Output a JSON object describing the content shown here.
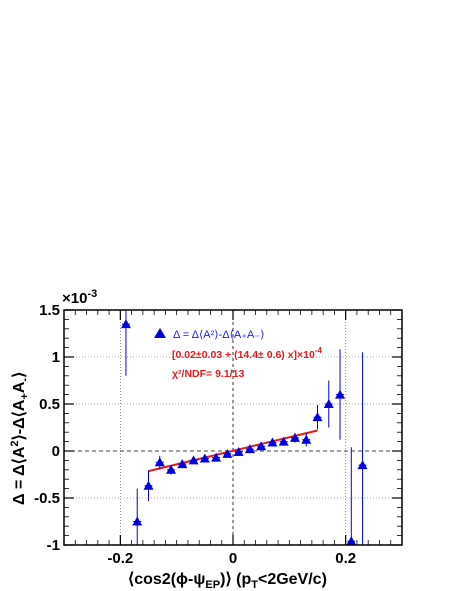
{
  "chart_data": {
    "type": "scatter",
    "xlabel_parts": {
      "pre": "⟨cos2(ϕ-ψ",
      "sub": "EP",
      "mid": ")⟩ (p",
      "sub2": "T",
      "post": "<2GeV/c)"
    },
    "ylabel_parts": {
      "pre": "Δ = Δ⟨A",
      "sup": "2",
      "mid": "⟩-Δ⟨A",
      "sub1": "+",
      "mid2": "A",
      "sub2": "-",
      "post": "⟩"
    },
    "y_exponent": "×10",
    "y_exponent_power": "-3",
    "xlim": [
      -0.3,
      0.3
    ],
    "ylim": [
      -1.0,
      1.5
    ],
    "x_ticks": [
      -0.2,
      0,
      0.2
    ],
    "x_tick_labels": [
      "-0.2",
      "0",
      "0.2"
    ],
    "y_ticks": [
      -1,
      -0.5,
      0,
      0.5,
      1,
      1.5
    ],
    "y_tick_labels": [
      "-1",
      "-0.5",
      "0",
      "0.5",
      "1",
      "1.5"
    ],
    "grid": true,
    "colors": {
      "markers": "#0000e0",
      "fit": "#e41a1c",
      "grid": "#555555"
    },
    "series": [
      {
        "name": "Δ = Δ⟨A²⟩-Δ⟨A₊A₋⟩",
        "marker": "triangle",
        "points": [
          {
            "x": -0.19,
            "y": 1.35,
            "err": 0.55
          },
          {
            "x": -0.17,
            "y": -0.75,
            "err": 0.35
          },
          {
            "x": -0.15,
            "y": -0.37,
            "err": 0.16
          },
          {
            "x": -0.13,
            "y": -0.12,
            "err": 0.07
          },
          {
            "x": -0.11,
            "y": -0.2,
            "err": 0.05
          },
          {
            "x": -0.09,
            "y": -0.14,
            "err": 0.04
          },
          {
            "x": -0.07,
            "y": -0.1,
            "err": 0.03
          },
          {
            "x": -0.05,
            "y": -0.08,
            "err": 0.03
          },
          {
            "x": -0.03,
            "y": -0.07,
            "err": 0.025
          },
          {
            "x": -0.01,
            "y": -0.03,
            "err": 0.025
          },
          {
            "x": 0.01,
            "y": -0.01,
            "err": 0.025
          },
          {
            "x": 0.03,
            "y": 0.02,
            "err": 0.025
          },
          {
            "x": 0.05,
            "y": 0.05,
            "err": 0.03
          },
          {
            "x": 0.07,
            "y": 0.09,
            "err": 0.03
          },
          {
            "x": 0.09,
            "y": 0.1,
            "err": 0.04
          },
          {
            "x": 0.11,
            "y": 0.14,
            "err": 0.05
          },
          {
            "x": 0.13,
            "y": 0.12,
            "err": 0.07
          },
          {
            "x": 0.15,
            "y": 0.36,
            "err": 0.13
          },
          {
            "x": 0.17,
            "y": 0.5,
            "err": 0.25
          },
          {
            "x": 0.19,
            "y": 0.6,
            "err": 0.48
          },
          {
            "x": 0.21,
            "y": -0.96,
            "err": 1.0
          },
          {
            "x": 0.23,
            "y": -0.15,
            "err": 1.2
          }
        ]
      }
    ],
    "fit": {
      "x": [
        -0.15,
        0.15
      ],
      "intercept": 0.002,
      "slope": 1.44
    },
    "legend": {
      "position": "top-left",
      "entry": "Δ = Δ⟨A²⟩-Δ⟨A₊A₋⟩",
      "fit_text": "[0.02±0.03 + (14.4± 0.6) x]×10",
      "fit_exp": "-4",
      "chi2_text": "χ²/NDF= 9.1/13"
    }
  }
}
